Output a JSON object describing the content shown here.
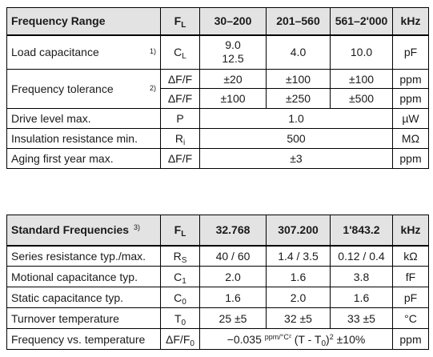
{
  "table1": {
    "header": {
      "label": "Frequency Range",
      "symbol_main": "F",
      "symbol_sub": "L",
      "cols": [
        "30–200",
        "201–560",
        "561–2'000"
      ],
      "unit": "kHz"
    },
    "load_cap": {
      "label": "Load capacitance",
      "note": "1)",
      "symbol_main": "C",
      "symbol_sub": "L",
      "v1a": "9.0",
      "v1b": "12.5",
      "v2": "4.0",
      "v3": "10.0",
      "unit": "pF"
    },
    "freq_tol": {
      "label": "Frequency tolerance",
      "note": "2)",
      "row1": {
        "symbol": "ΔF/F",
        "v1": "±20",
        "v2": "±100",
        "v3": "±100",
        "unit": "ppm"
      },
      "row2": {
        "symbol": "ΔF/F",
        "v1": "±100",
        "v2": "±250",
        "v3": "±500",
        "unit": "ppm"
      }
    },
    "drive": {
      "label": "Drive level max.",
      "symbol": "P",
      "value": "1.0",
      "unit": "µW"
    },
    "insulation": {
      "label": "Insulation resistance min.",
      "symbol_main": "R",
      "symbol_sub": "i",
      "value": "500",
      "unit": "MΩ"
    },
    "aging": {
      "label": "Aging first year max.",
      "symbol": "ΔF/F",
      "value": "±3",
      "unit": "ppm"
    }
  },
  "table2": {
    "header": {
      "label": "Standard Frequencies",
      "note": "3)",
      "symbol_main": "F",
      "symbol_sub": "L",
      "cols": [
        "32.768",
        "307.200",
        "1'843.2"
      ],
      "unit": "kHz"
    },
    "rows": [
      {
        "label": "Series resistance typ./max.",
        "sym_main": "R",
        "sym_sub": "S",
        "v1": "40 / 60",
        "v2": "1.4 / 3.5",
        "v3": "0.12 / 0.4",
        "unit": "kΩ"
      },
      {
        "label": "Motional capacitance typ.",
        "sym_main": "C",
        "sym_sub": "1",
        "v1": "2.0",
        "v2": "1.6",
        "v3": "3.8",
        "unit": "fF"
      },
      {
        "label": "Static capacitance typ.",
        "sym_main": "C",
        "sym_sub": "0",
        "v1": "1.6",
        "v2": "2.0",
        "v3": "1.6",
        "unit": "pF"
      },
      {
        "label": "Turnover temperature",
        "sym_main": "T",
        "sym_sub": "0",
        "v1": "25 ±5",
        "v2": "32 ±5",
        "v3": "33 ±5",
        "unit": "°C"
      }
    ],
    "fvt": {
      "label": "Frequency vs. temperature",
      "sym_main": "ΔF/F",
      "sym_sub": "0",
      "f_coef": "−0.035",
      "f_unit": "ppm/°C²",
      "f_open": "(T - T",
      "f_sub": "0",
      "f_close": ")",
      "f_exp": "2",
      "f_tol": "±10%",
      "unit": "ppm"
    }
  }
}
